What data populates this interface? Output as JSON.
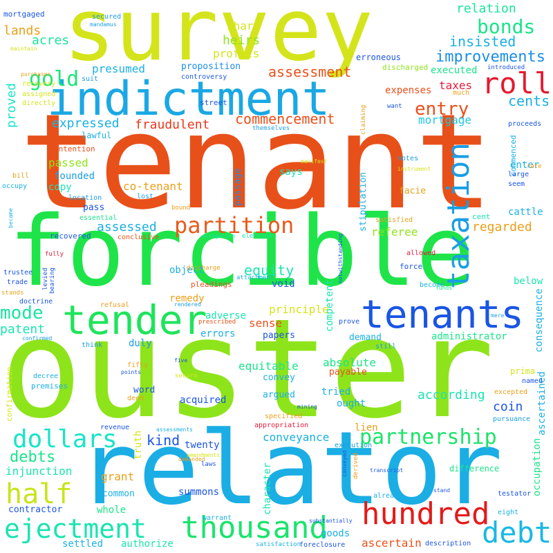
{
  "words": [
    {
      "text": "ouster",
      "color": "#8ee41a"
    },
    {
      "text": "tenant",
      "color": "#e8501a"
    },
    {
      "text": "forcible",
      "color": "#1ee44a"
    },
    {
      "text": "relator",
      "color": "#1aaee4"
    },
    {
      "text": "survey",
      "color": "#d4e41a"
    },
    {
      "text": "indictment",
      "color": "#1aa8e4"
    },
    {
      "text": "tenants",
      "color": "#1a55e4"
    },
    {
      "text": "tender",
      "color": "#1ee45a"
    },
    {
      "text": "hundred",
      "color": "#e41a1a"
    },
    {
      "text": "thousand",
      "color": "#1ae46e"
    },
    {
      "text": "ejectment",
      "color": "#1ae4b0"
    },
    {
      "text": "debt",
      "color": "#1ab8e4"
    },
    {
      "text": "partition",
      "color": "#e85a1a"
    },
    {
      "text": "taxation",
      "color": "#1a9ee4"
    },
    {
      "text": "dollars",
      "color": "#1ae4c8"
    },
    {
      "text": "partnership",
      "color": "#1ae46a"
    },
    {
      "text": "half",
      "color": "#c8e41a"
    },
    {
      "text": "roll",
      "color": "#e41a2e"
    },
    {
      "text": "bonds",
      "color": "#1ae48a"
    },
    {
      "text": "gold",
      "color": "#1ae47a"
    },
    {
      "text": "mode",
      "color": "#1ae4a0"
    },
    {
      "text": "entry",
      "color": "#e8501a"
    },
    {
      "text": "improvements",
      "color": "#1a8ee4"
    },
    {
      "text": "insisted",
      "color": "#1ab0e4"
    },
    {
      "text": "relation",
      "color": "#1ae49a"
    },
    {
      "text": "assessment",
      "color": "#e8501a"
    },
    {
      "text": "commencement",
      "color": "#e8501a"
    },
    {
      "text": "fraudulent",
      "color": "#e8381a"
    },
    {
      "text": "cents",
      "color": "#1aaee4"
    },
    {
      "text": "mortgage",
      "color": "#1ac8e4"
    },
    {
      "text": "expressed",
      "color": "#1ab0e4"
    },
    {
      "text": "expenses",
      "color": "#e8501a"
    },
    {
      "text": "taxes",
      "color": "#e41a3a"
    },
    {
      "text": "heirs",
      "color": "#8ee41a"
    },
    {
      "text": "share",
      "color": "#d4e41a"
    },
    {
      "text": "profits",
      "color": "#d4e41a"
    },
    {
      "text": "lands",
      "color": "#e8a01a"
    },
    {
      "text": "acres",
      "color": "#1ae49a"
    },
    {
      "text": "presumed",
      "color": "#1ab0e4"
    },
    {
      "text": "proposition",
      "color": "#1a8ee4"
    },
    {
      "text": "controversy",
      "color": "#1a5ae4"
    },
    {
      "text": "proved",
      "color": "#1ae4c8"
    },
    {
      "text": "passed",
      "color": "#8ee41a"
    },
    {
      "text": "founded",
      "color": "#1a9ee4"
    },
    {
      "text": "copy",
      "color": "#1ae4b8"
    },
    {
      "text": "co-tenant",
      "color": "#e8a01a"
    },
    {
      "text": "assessed",
      "color": "#1aaee4"
    },
    {
      "text": "pass",
      "color": "#1a55e4"
    },
    {
      "text": "passage",
      "color": "#1a8ee4"
    },
    {
      "text": "regarded",
      "color": "#e8a01a"
    },
    {
      "text": "referee",
      "color": "#8ee41a"
    },
    {
      "text": "equity",
      "color": "#1ae4b0"
    },
    {
      "text": "object",
      "color": "#1ab0e4"
    },
    {
      "text": "void",
      "color": "#1a55e4"
    },
    {
      "text": "principle",
      "color": "#d4e41a"
    },
    {
      "text": "sense",
      "color": "#e8501a"
    },
    {
      "text": "remedy",
      "color": "#e8a01a"
    },
    {
      "text": "adverse",
      "color": "#1ae4b0"
    },
    {
      "text": "patent",
      "color": "#1ae4b0"
    },
    {
      "text": "errors",
      "color": "#1ab0e4"
    },
    {
      "text": "papers",
      "color": "#1a55e4"
    },
    {
      "text": "demand",
      "color": "#1ab0e4"
    },
    {
      "text": "duly",
      "color": "#1a9ee4"
    },
    {
      "text": "equitable",
      "color": "#1ae48a"
    },
    {
      "text": "absolute",
      "color": "#1ae48a"
    },
    {
      "text": "payable",
      "color": "#e8501a"
    },
    {
      "text": "convey",
      "color": "#1ab0e4"
    },
    {
      "text": "tried",
      "color": "#1ab0e4"
    },
    {
      "text": "according",
      "color": "#1ae4b0"
    },
    {
      "text": "argued",
      "color": "#1ab0e4"
    },
    {
      "text": "acquired",
      "color": "#1a55e4"
    },
    {
      "text": "ought",
      "color": "#1ab0e4"
    },
    {
      "text": "coin",
      "color": "#1a55e4"
    },
    {
      "text": "word",
      "color": "#1a55e4"
    },
    {
      "text": "conveyance",
      "color": "#1ab0e4"
    },
    {
      "text": "kind",
      "color": "#1a55e4"
    },
    {
      "text": "twenty",
      "color": "#1a55e4"
    },
    {
      "text": "debts",
      "color": "#1ae48a"
    },
    {
      "text": "injunction",
      "color": "#1ae4b0"
    },
    {
      "text": "grant",
      "color": "#e8a01a"
    },
    {
      "text": "common",
      "color": "#1ab0e4"
    },
    {
      "text": "summons",
      "color": "#1a55e4"
    },
    {
      "text": "whole",
      "color": "#1ae48a"
    },
    {
      "text": "contractor",
      "color": "#1a55e4"
    },
    {
      "text": "goods",
      "color": "#1ab0e4"
    },
    {
      "text": "settled",
      "color": "#1ab0e4"
    },
    {
      "text": "authorize",
      "color": "#1ae4b0"
    },
    {
      "text": "ascertain",
      "color": "#e8501a"
    },
    {
      "text": "administrator",
      "color": "#1ae48a"
    },
    {
      "text": "consequence",
      "color": "#1ab0e4"
    },
    {
      "text": "ascertained",
      "color": "#1ab0e4"
    },
    {
      "text": "occupation",
      "color": "#1ae48a"
    },
    {
      "text": "cattle",
      "color": "#1ab0e4"
    },
    {
      "text": "enter",
      "color": "#1ab0e4"
    },
    {
      "text": "below",
      "color": "#1ae4b0"
    },
    {
      "text": "competent",
      "color": "#1ae4b0"
    },
    {
      "text": "stipulation",
      "color": "#1ab0e4"
    },
    {
      "text": "character",
      "color": "#1ae4b0"
    },
    {
      "text": "truth",
      "color": "#d4e41a"
    },
    {
      "text": "lien",
      "color": "#e8a01a"
    },
    {
      "text": "says",
      "color": "#1ae4b0"
    },
    {
      "text": "facie",
      "color": "#e8a01a"
    },
    {
      "text": "executed",
      "color": "#1ae48a"
    },
    {
      "text": "erroneous",
      "color": "#1a55e4"
    },
    {
      "text": "discharged",
      "color": "#8ee41a"
    },
    {
      "text": "much",
      "color": "#e8a01a"
    },
    {
      "text": "want",
      "color": "#1a55e4"
    },
    {
      "text": "proceeds",
      "color": "#1a55e4"
    },
    {
      "text": "commenced",
      "color": "#1ab0e4"
    },
    {
      "text": "rate",
      "color": "#e8a01a"
    },
    {
      "text": "large",
      "color": "#1a55e4"
    },
    {
      "text": "seem",
      "color": "#1a55e4"
    },
    {
      "text": "cent",
      "color": "#1ae4b0"
    },
    {
      "text": "mortgaged",
      "color": "#1a55e4"
    },
    {
      "text": "secured",
      "color": "#1a9ee4"
    },
    {
      "text": "mandamus",
      "color": "#1a9ee4"
    },
    {
      "text": "maintain",
      "color": "#d4e41a"
    },
    {
      "text": "purchaser",
      "color": "#e8a01a"
    },
    {
      "text": "suit",
      "color": "#1a9ee4"
    },
    {
      "text": "recovery",
      "color": "#d4e41a"
    },
    {
      "text": "assigned",
      "color": "#d4e41a"
    },
    {
      "text": "directly",
      "color": "#d4e41a"
    },
    {
      "text": "street",
      "color": "#1a55e4"
    },
    {
      "text": "claiming",
      "color": "#e8a01a"
    },
    {
      "text": "themselves",
      "color": "#1a9ee4"
    },
    {
      "text": "lawful",
      "color": "#1ab0e4"
    },
    {
      "text": "intention",
      "color": "#e8501a"
    },
    {
      "text": "bill",
      "color": "#e8a01a"
    },
    {
      "text": "occupy",
      "color": "#1ab0e4"
    },
    {
      "text": "became",
      "color": "#1ab0e4"
    },
    {
      "text": "location",
      "color": "#1a9ee4"
    },
    {
      "text": "lost",
      "color": "#1a9ee4"
    },
    {
      "text": "bound",
      "color": "#e8a01a"
    },
    {
      "text": "essential",
      "color": "#1ae48a"
    },
    {
      "text": "recovered",
      "color": "#1a55e4"
    },
    {
      "text": "conclusive",
      "color": "#e8501a"
    },
    {
      "text": "allegation",
      "color": "#1ae4b0"
    },
    {
      "text": "election",
      "color": "#1ae4b0"
    },
    {
      "text": "notes",
      "color": "#1a9ee4"
    },
    {
      "text": "manifest",
      "color": "#d4e41a"
    },
    {
      "text": "instrument",
      "color": "#d4e41a"
    },
    {
      "text": "introduced",
      "color": "#1a55e4"
    },
    {
      "text": "satisfied",
      "color": "#e8a01a"
    },
    {
      "text": "notwithstanding",
      "color": "#1a55e4"
    },
    {
      "text": "allowed",
      "color": "#e41a3a"
    },
    {
      "text": "fully",
      "color": "#e41a3a"
    },
    {
      "text": "trustee",
      "color": "#1a55e4"
    },
    {
      "text": "trade",
      "color": "#1a55e4"
    },
    {
      "text": "levied",
      "color": "#1a55e4"
    },
    {
      "text": "bearing",
      "color": "#1a55e4"
    },
    {
      "text": "stands",
      "color": "#e8a01a"
    },
    {
      "text": "discharge",
      "color": "#e8a01a"
    },
    {
      "text": "attachment",
      "color": "#1ab0e4"
    },
    {
      "text": "pleadings",
      "color": "#e8501a"
    },
    {
      "text": "rendered",
      "color": "#1a9ee4"
    },
    {
      "text": "doctrine",
      "color": "#1a55e4"
    },
    {
      "text": "refusal",
      "color": "#e8a01a"
    },
    {
      "text": "prescribed",
      "color": "#e8501a"
    },
    {
      "text": "confirmed",
      "color": "#1a9ee4"
    },
    {
      "text": "think",
      "color": "#1a9ee4"
    },
    {
      "text": "prove",
      "color": "#1a55e4"
    },
    {
      "text": "still",
      "color": "#1a9ee4"
    },
    {
      "text": "force",
      "color": "#1a55e4"
    },
    {
      "text": "become",
      "color": "#1ab0e4"
    },
    {
      "text": "funds",
      "color": "#1ae48a"
    },
    {
      "text": "mere",
      "color": "#1a9ee4"
    },
    {
      "text": "prima",
      "color": "#d4e41a"
    },
    {
      "text": "named",
      "color": "#1a55e4"
    },
    {
      "text": "excepted",
      "color": "#e8a01a"
    },
    {
      "text": "pursuance",
      "color": "#1a9ee4"
    },
    {
      "text": "five",
      "color": "#1a55e4"
    },
    {
      "text": "fifty",
      "color": "#e8a01a"
    },
    {
      "text": "points",
      "color": "#1a55e4"
    },
    {
      "text": "secure",
      "color": "#d4e41a"
    },
    {
      "text": "decree",
      "color": "#1ab0e4"
    },
    {
      "text": "premises",
      "color": "#1ab0e4"
    },
    {
      "text": "deed",
      "color": "#e8a01a"
    },
    {
      "text": "confirmation",
      "color": "#d4e41a"
    },
    {
      "text": "mining",
      "color": "#1a55e4"
    },
    {
      "text": "specified",
      "color": "#e8a01a"
    },
    {
      "text": "appropriation",
      "color": "#e41a3a"
    },
    {
      "text": "revenue",
      "color": "#1a55e4"
    },
    {
      "text": "assessments",
      "color": "#1ab0e4"
    },
    {
      "text": "amendments",
      "color": "#d4e41a"
    },
    {
      "text": "demanded",
      "color": "#e8a01a"
    },
    {
      "text": "laws",
      "color": "#1a55e4"
    },
    {
      "text": "execution",
      "color": "#1a9ee4"
    },
    {
      "text": "conveyed",
      "color": "#1a55e4"
    },
    {
      "text": "derived",
      "color": "#e8a01a"
    },
    {
      "text": "difference",
      "color": "#1ae48a"
    },
    {
      "text": "transcript",
      "color": "#1a55e4"
    },
    {
      "text": "stand",
      "color": "#1a55e4"
    },
    {
      "text": "already",
      "color": "#1ab0e4"
    },
    {
      "text": "testator",
      "color": "#1a55e4"
    },
    {
      "text": "eight",
      "color": "#1ab0e4"
    },
    {
      "text": "warrant",
      "color": "#1ab0e4"
    },
    {
      "text": "substantially",
      "color": "#1a55e4"
    },
    {
      "text": "satisfaction",
      "color": "#1ab0e4"
    },
    {
      "text": "foreclosure",
      "color": "#1a55e4"
    },
    {
      "text": "description",
      "color": "#1a55e4"
    }
  ]
}
